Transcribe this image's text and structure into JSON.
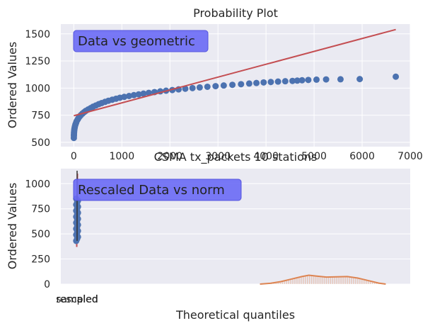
{
  "colors": {
    "axes_bg": "#EAEAF2",
    "grid": "#FFFFFF",
    "points": "#4C72B0",
    "fit_line": "#C44E52",
    "annotation_box": "#6A6AF5",
    "hist": "#DD8452"
  },
  "chart_data": [
    {
      "type": "scatter",
      "title": "Probability Plot",
      "xlabel": "",
      "ylabel": "Ordered Values",
      "xlim": [
        -270,
        7000
      ],
      "ylim": [
        460,
        1590
      ],
      "xticks": [
        0,
        1000,
        2000,
        3000,
        4000,
        5000,
        6000,
        7000
      ],
      "yticks": [
        500,
        750,
        1000,
        1250,
        1500
      ],
      "grid": true,
      "annotation": "Data vs geometric",
      "points": [
        [
          1,
          540
        ],
        [
          2,
          560
        ],
        [
          3,
          575
        ],
        [
          5,
          590
        ],
        [
          8,
          605
        ],
        [
          12,
          620
        ],
        [
          18,
          635
        ],
        [
          25,
          650
        ],
        [
          35,
          665
        ],
        [
          48,
          680
        ],
        [
          60,
          695
        ],
        [
          80,
          710
        ],
        [
          100,
          725
        ],
        [
          125,
          740
        ],
        [
          150,
          752
        ],
        [
          180,
          765
        ],
        [
          215,
          778
        ],
        [
          250,
          790
        ],
        [
          300,
          803
        ],
        [
          350,
          815
        ],
        [
          400,
          828
        ],
        [
          460,
          840
        ],
        [
          520,
          852
        ],
        [
          580,
          862
        ],
        [
          650,
          873
        ],
        [
          720,
          883
        ],
        [
          800,
          893
        ],
        [
          880,
          902
        ],
        [
          960,
          911
        ],
        [
          1050,
          919
        ],
        [
          1150,
          927
        ],
        [
          1250,
          935
        ],
        [
          1350,
          942
        ],
        [
          1450,
          949
        ],
        [
          1560,
          956
        ],
        [
          1680,
          963
        ],
        [
          1800,
          970
        ],
        [
          1920,
          976
        ],
        [
          2050,
          982
        ],
        [
          2180,
          988
        ],
        [
          2320,
          994
        ],
        [
          2470,
          1000
        ],
        [
          2620,
          1006
        ],
        [
          2780,
          1012
        ],
        [
          2950,
          1018
        ],
        [
          3120,
          1024
        ],
        [
          3300,
          1030
        ],
        [
          3480,
          1036
        ],
        [
          3650,
          1042
        ],
        [
          3800,
          1047
        ],
        [
          3950,
          1052
        ],
        [
          4100,
          1056
        ],
        [
          4250,
          1060
        ],
        [
          4400,
          1063
        ],
        [
          4550,
          1066
        ],
        [
          4650,
          1069
        ],
        [
          4750,
          1072
        ],
        [
          4880,
          1075
        ],
        [
          5050,
          1078
        ],
        [
          5250,
          1080
        ],
        [
          5550,
          1081
        ],
        [
          5950,
          1083
        ],
        [
          6700,
          1105
        ]
      ],
      "fit_line": {
        "x": [
          0,
          6700
        ],
        "y": [
          745,
          1540
        ]
      }
    },
    {
      "type": "scatter",
      "title": "CSMA tx_packets 10 stations",
      "xlabel": "Theoretical quantiles",
      "ylabel": "Ordered Values",
      "ylim": [
        0,
        1150
      ],
      "yticks": [
        0,
        250,
        500,
        750,
        1000
      ],
      "xtick_labels": [
        "sampled",
        "rescaled"
      ],
      "grid": true,
      "annotation": "Rescaled Data vs norm",
      "points_y": [
        430,
        450,
        470,
        490,
        510,
        530,
        550,
        570,
        590,
        610,
        630,
        650,
        670,
        690,
        710,
        730,
        750,
        770,
        790,
        810,
        830,
        850
      ],
      "fit_line": {
        "y": [
          370,
          1100
        ]
      },
      "density_curve": [
        [
          0.57,
          0
        ],
        [
          0.6,
          8
        ],
        [
          0.63,
          25
        ],
        [
          0.66,
          50
        ],
        [
          0.69,
          75
        ],
        [
          0.71,
          88
        ],
        [
          0.73,
          80
        ],
        [
          0.76,
          70
        ],
        [
          0.79,
          72
        ],
        [
          0.82,
          75
        ],
        [
          0.85,
          60
        ],
        [
          0.88,
          35
        ],
        [
          0.91,
          10
        ],
        [
          0.93,
          0
        ]
      ]
    }
  ]
}
